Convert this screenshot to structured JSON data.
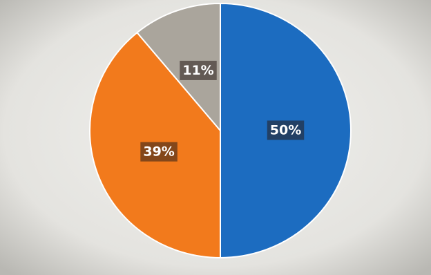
{
  "chart_data": {
    "type": "pie",
    "values": [
      50,
      39,
      11
    ],
    "value_labels": [
      "50%",
      "39%",
      "11%"
    ],
    "colors": [
      "#1c6cc0",
      "#f27a1c",
      "#aaa59c"
    ]
  }
}
